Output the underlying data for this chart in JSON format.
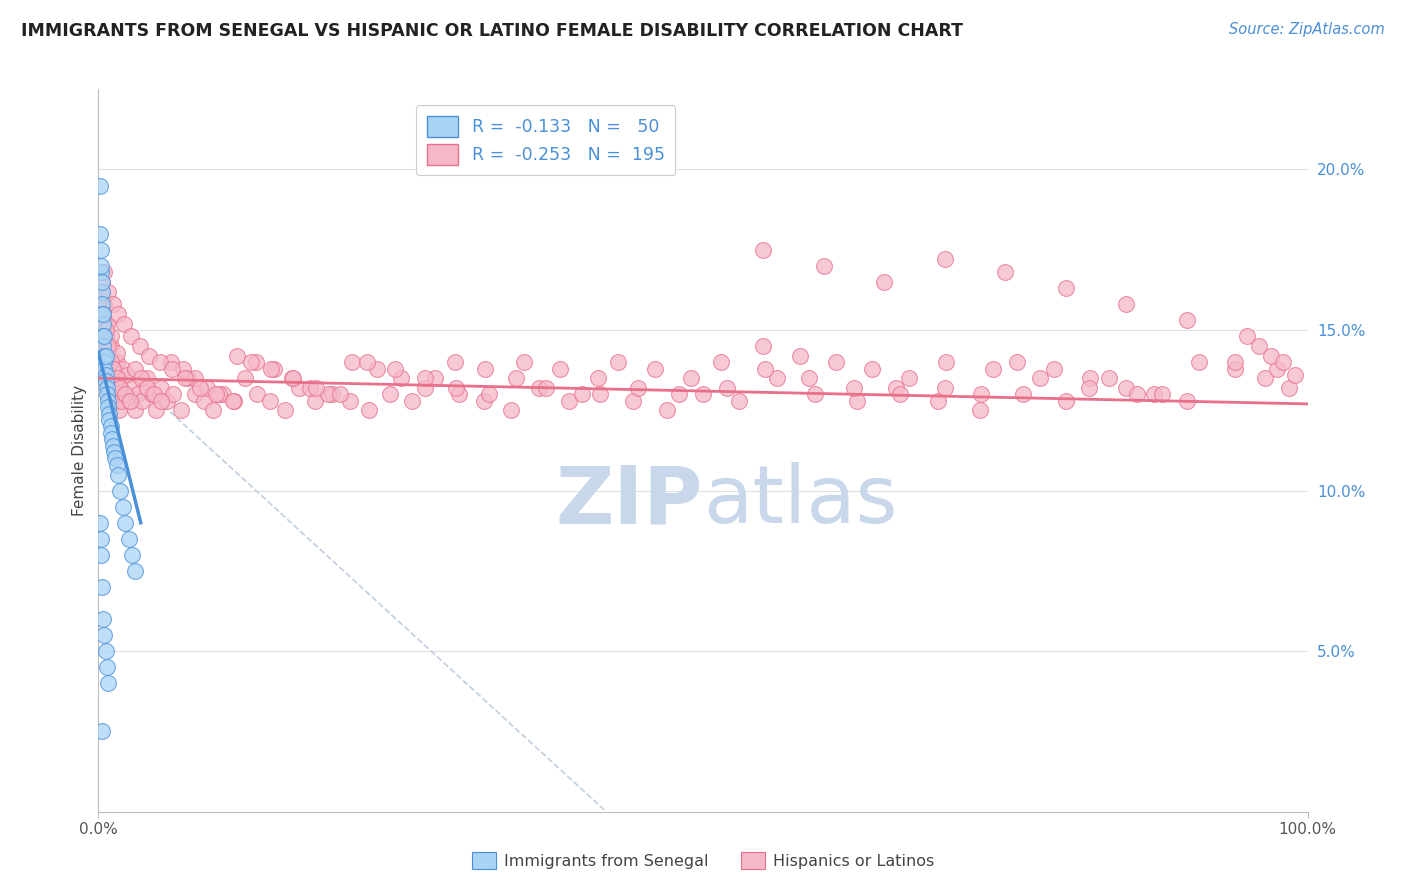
{
  "title": "IMMIGRANTS FROM SENEGAL VS HISPANIC OR LATINO FEMALE DISABILITY CORRELATION CHART",
  "source": "Source: ZipAtlas.com",
  "ylabel": "Female Disability",
  "y_ticks": [
    0.05,
    0.1,
    0.15,
    0.2
  ],
  "y_tick_labels": [
    "5.0%",
    "10.0%",
    "15.0%",
    "20.0%"
  ],
  "legend_1_label": "R =  -0.133   N =   50",
  "legend_2_label": "R =  -0.253   N =  195",
  "legend_1_color": "#aad4f5",
  "legend_2_color": "#f5b8c8",
  "trend_1_color": "#4a90d9",
  "trend_2_color": "#e8708a",
  "dashed_line_color": "#c0cfe0",
  "watermark_zip": "ZIP",
  "watermark_atlas": "atlas",
  "watermark_color": "#c8d8ea",
  "background_color": "#ffffff",
  "grid_color": "#e0e0e0",
  "title_color": "#222222",
  "source_color": "#4a90d9",
  "axis_color": "#999999",
  "blue_x": [
    0.001,
    0.001,
    0.002,
    0.002,
    0.003,
    0.003,
    0.003,
    0.004,
    0.004,
    0.004,
    0.005,
    0.005,
    0.005,
    0.006,
    0.006,
    0.007,
    0.007,
    0.008,
    0.008,
    0.009,
    0.009,
    0.01,
    0.01,
    0.011,
    0.012,
    0.013,
    0.014,
    0.015,
    0.016,
    0.018,
    0.02,
    0.022,
    0.025,
    0.028,
    0.03,
    0.002,
    0.003,
    0.004,
    0.005,
    0.006,
    0.001,
    0.002,
    0.003,
    0.004,
    0.005,
    0.006,
    0.007,
    0.008,
    0.002,
    0.003
  ],
  "blue_y": [
    0.195,
    0.18,
    0.175,
    0.168,
    0.162,
    0.158,
    0.155,
    0.152,
    0.148,
    0.145,
    0.142,
    0.14,
    0.138,
    0.136,
    0.134,
    0.132,
    0.13,
    0.128,
    0.126,
    0.124,
    0.122,
    0.12,
    0.118,
    0.116,
    0.114,
    0.112,
    0.11,
    0.108,
    0.105,
    0.1,
    0.095,
    0.09,
    0.085,
    0.08,
    0.075,
    0.17,
    0.165,
    0.155,
    0.148,
    0.142,
    0.09,
    0.08,
    0.07,
    0.06,
    0.055,
    0.05,
    0.045,
    0.04,
    0.085,
    0.025
  ],
  "pink_x": [
    0.001,
    0.002,
    0.002,
    0.003,
    0.003,
    0.004,
    0.004,
    0.005,
    0.005,
    0.006,
    0.006,
    0.007,
    0.007,
    0.008,
    0.008,
    0.009,
    0.01,
    0.01,
    0.011,
    0.012,
    0.013,
    0.014,
    0.015,
    0.016,
    0.017,
    0.018,
    0.019,
    0.02,
    0.022,
    0.024,
    0.026,
    0.028,
    0.03,
    0.033,
    0.036,
    0.04,
    0.044,
    0.048,
    0.052,
    0.057,
    0.062,
    0.068,
    0.074,
    0.08,
    0.087,
    0.095,
    0.103,
    0.112,
    0.121,
    0.131,
    0.142,
    0.154,
    0.166,
    0.179,
    0.193,
    0.208,
    0.224,
    0.241,
    0.259,
    0.278,
    0.298,
    0.319,
    0.341,
    0.364,
    0.389,
    0.415,
    0.442,
    0.47,
    0.5,
    0.53,
    0.561,
    0.593,
    0.627,
    0.66,
    0.694,
    0.729,
    0.765,
    0.8,
    0.836,
    0.873,
    0.003,
    0.005,
    0.007,
    0.01,
    0.015,
    0.003,
    0.004,
    0.006,
    0.008,
    0.01,
    0.012,
    0.015,
    0.018,
    0.022,
    0.026,
    0.03,
    0.035,
    0.04,
    0.046,
    0.052,
    0.06,
    0.07,
    0.08,
    0.09,
    0.1,
    0.115,
    0.13,
    0.145,
    0.16,
    0.175,
    0.19,
    0.21,
    0.23,
    0.25,
    0.27,
    0.295,
    0.32,
    0.345,
    0.37,
    0.4,
    0.43,
    0.46,
    0.49,
    0.52,
    0.55,
    0.58,
    0.61,
    0.64,
    0.67,
    0.7,
    0.73,
    0.76,
    0.79,
    0.82,
    0.85,
    0.88,
    0.91,
    0.94,
    0.965,
    0.985,
    0.005,
    0.008,
    0.012,
    0.016,
    0.021,
    0.027,
    0.034,
    0.042,
    0.051,
    0.061,
    0.072,
    0.084,
    0.097,
    0.111,
    0.126,
    0.143,
    0.161,
    0.18,
    0.2,
    0.222,
    0.245,
    0.27,
    0.296,
    0.323,
    0.352,
    0.382,
    0.413,
    0.446,
    0.48,
    0.515,
    0.551,
    0.588,
    0.625,
    0.663,
    0.701,
    0.74,
    0.779,
    0.819,
    0.859,
    0.9,
    0.94,
    0.975,
    0.99,
    0.55,
    0.6,
    0.65,
    0.7,
    0.75,
    0.8,
    0.85,
    0.9,
    0.95,
    0.96,
    0.97,
    0.98
  ],
  "pink_y": [
    0.155,
    0.158,
    0.152,
    0.16,
    0.148,
    0.155,
    0.145,
    0.152,
    0.142,
    0.148,
    0.138,
    0.145,
    0.135,
    0.142,
    0.132,
    0.138,
    0.145,
    0.13,
    0.128,
    0.135,
    0.132,
    0.128,
    0.14,
    0.135,
    0.125,
    0.132,
    0.128,
    0.138,
    0.13,
    0.136,
    0.128,
    0.132,
    0.125,
    0.13,
    0.128,
    0.135,
    0.13,
    0.125,
    0.132,
    0.128,
    0.13,
    0.125,
    0.135,
    0.13,
    0.128,
    0.125,
    0.13,
    0.128,
    0.135,
    0.13,
    0.128,
    0.125,
    0.132,
    0.128,
    0.13,
    0.128,
    0.125,
    0.13,
    0.128,
    0.135,
    0.13,
    0.128,
    0.125,
    0.132,
    0.128,
    0.13,
    0.128,
    0.125,
    0.13,
    0.128,
    0.135,
    0.13,
    0.128,
    0.132,
    0.128,
    0.125,
    0.13,
    0.128,
    0.135,
    0.13,
    0.165,
    0.158,
    0.152,
    0.148,
    0.143,
    0.162,
    0.155,
    0.15,
    0.145,
    0.14,
    0.138,
    0.135,
    0.132,
    0.13,
    0.128,
    0.138,
    0.135,
    0.132,
    0.13,
    0.128,
    0.14,
    0.138,
    0.135,
    0.132,
    0.13,
    0.142,
    0.14,
    0.138,
    0.135,
    0.132,
    0.13,
    0.14,
    0.138,
    0.135,
    0.132,
    0.14,
    0.138,
    0.135,
    0.132,
    0.13,
    0.14,
    0.138,
    0.135,
    0.132,
    0.145,
    0.142,
    0.14,
    0.138,
    0.135,
    0.132,
    0.13,
    0.14,
    0.138,
    0.135,
    0.132,
    0.13,
    0.14,
    0.138,
    0.135,
    0.132,
    0.168,
    0.162,
    0.158,
    0.155,
    0.152,
    0.148,
    0.145,
    0.142,
    0.14,
    0.138,
    0.135,
    0.132,
    0.13,
    0.128,
    0.14,
    0.138,
    0.135,
    0.132,
    0.13,
    0.14,
    0.138,
    0.135,
    0.132,
    0.13,
    0.14,
    0.138,
    0.135,
    0.132,
    0.13,
    0.14,
    0.138,
    0.135,
    0.132,
    0.13,
    0.14,
    0.138,
    0.135,
    0.132,
    0.13,
    0.128,
    0.14,
    0.138,
    0.136,
    0.175,
    0.17,
    0.165,
    0.172,
    0.168,
    0.163,
    0.158,
    0.153,
    0.148,
    0.145,
    0.142,
    0.14
  ]
}
